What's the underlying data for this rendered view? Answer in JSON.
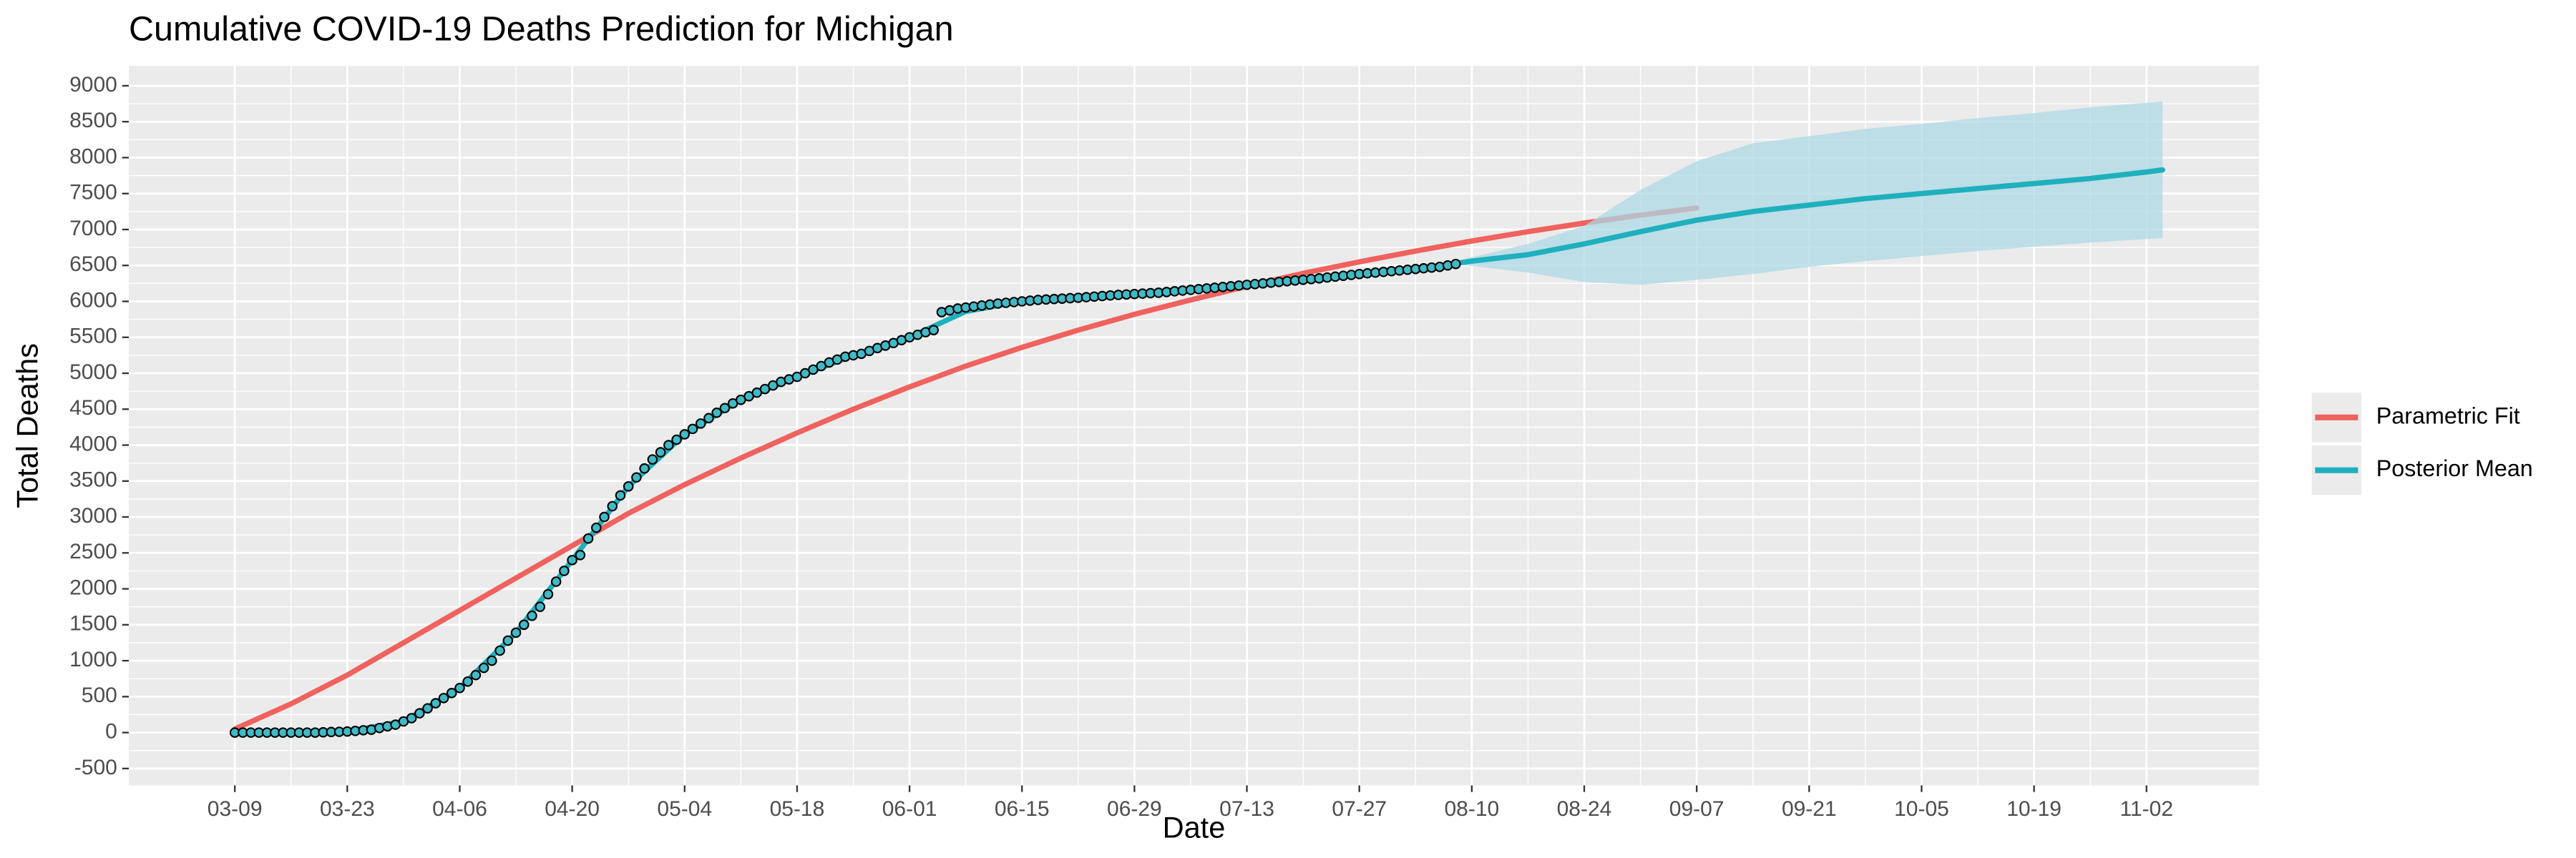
{
  "chart_data": {
    "type": "line",
    "title": "Cumulative COVID-19 Deaths Prediction for Michigan",
    "x_label": "Date",
    "y_label": "Total Deaths",
    "xlim": [
      -13.2,
      252
    ],
    "ylim": [
      -735,
      9275
    ],
    "xticks": [
      {
        "value": 0,
        "label": "03-09"
      },
      {
        "value": 14,
        "label": "03-23"
      },
      {
        "value": 28,
        "label": "04-06"
      },
      {
        "value": 42,
        "label": "04-20"
      },
      {
        "value": 56,
        "label": "05-04"
      },
      {
        "value": 70,
        "label": "05-18"
      },
      {
        "value": 84,
        "label": "06-01"
      },
      {
        "value": 98,
        "label": "06-15"
      },
      {
        "value": 112,
        "label": "06-29"
      },
      {
        "value": 126,
        "label": "07-13"
      },
      {
        "value": 140,
        "label": "07-27"
      },
      {
        "value": 154,
        "label": "08-10"
      },
      {
        "value": 168,
        "label": "08-24"
      },
      {
        "value": 182,
        "label": "09-07"
      },
      {
        "value": 196,
        "label": "09-21"
      },
      {
        "value": 210,
        "label": "10-05"
      },
      {
        "value": 224,
        "label": "10-19"
      },
      {
        "value": 238,
        "label": "11-02"
      }
    ],
    "yticks": [
      -500,
      0,
      500,
      1000,
      1500,
      2000,
      2500,
      3000,
      3500,
      4000,
      4500,
      5000,
      5500,
      6000,
      6500,
      7000,
      7500,
      8000,
      8500,
      9000
    ],
    "grid": true,
    "legend_position": "right",
    "series": [
      {
        "name": "Parametric Fit",
        "color": "#F0625E",
        "x": [
          0,
          7,
          14,
          21,
          28,
          35,
          42,
          49,
          56,
          63,
          70,
          77,
          84,
          91,
          98,
          105,
          112,
          119,
          126,
          133,
          140,
          147,
          154,
          161,
          168,
          175,
          182
        ],
        "values": [
          50,
          400,
          800,
          1250,
          1700,
          2150,
          2600,
          3050,
          3450,
          3820,
          4170,
          4500,
          4810,
          5100,
          5360,
          5600,
          5820,
          6020,
          6210,
          6390,
          6550,
          6700,
          6840,
          6970,
          7090,
          7200,
          7300
        ]
      },
      {
        "name": "Posterior Mean",
        "color": "#1FB0BD",
        "x": [
          0,
          7,
          14,
          21,
          28,
          35,
          42,
          49,
          56,
          63,
          70,
          77,
          84,
          91,
          98,
          105,
          112,
          119,
          126,
          133,
          140,
          147,
          154,
          161,
          168,
          175,
          182,
          189,
          196,
          203,
          210,
          217,
          224,
          231,
          238,
          240
        ],
        "values": [
          0,
          0,
          15,
          155,
          620,
          1390,
          2400,
          3425,
          4150,
          4630,
          4950,
          5250,
          5500,
          5860,
          6000,
          6050,
          6100,
          6160,
          6230,
          6300,
          6380,
          6450,
          6560,
          6650,
          6800,
          6970,
          7130,
          7250,
          7340,
          7430,
          7500,
          7570,
          7640,
          7710,
          7800,
          7830
        ]
      }
    ],
    "band": {
      "color": "#ADD8E6",
      "x": [
        152,
        161,
        168,
        175,
        182,
        189,
        196,
        203,
        210,
        217,
        224,
        231,
        240
      ],
      "lower": [
        6520,
        6400,
        6270,
        6230,
        6300,
        6380,
        6480,
        6560,
        6630,
        6700,
        6760,
        6820,
        6880
      ],
      "upper": [
        6560,
        6800,
        7050,
        7550,
        7950,
        8200,
        8300,
        8400,
        8470,
        8550,
        8620,
        8700,
        8780
      ]
    },
    "points": {
      "color": "#3FBAC6",
      "x": [
        0,
        1,
        2,
        3,
        4,
        5,
        6,
        7,
        8,
        9,
        10,
        11,
        12,
        13,
        14,
        15,
        16,
        17,
        18,
        19,
        20,
        21,
        22,
        23,
        24,
        25,
        26,
        27,
        28,
        29,
        30,
        31,
        32,
        33,
        34,
        35,
        36,
        37,
        38,
        39,
        40,
        41,
        42,
        43,
        44,
        45,
        46,
        47,
        48,
        49,
        50,
        51,
        52,
        53,
        54,
        55,
        56,
        57,
        58,
        59,
        60,
        61,
        62,
        63,
        64,
        65,
        66,
        67,
        68,
        69,
        70,
        71,
        72,
        73,
        74,
        75,
        76,
        77,
        78,
        79,
        80,
        81,
        82,
        83,
        84,
        85,
        86,
        87,
        88,
        89,
        90,
        91,
        92,
        93,
        94,
        95,
        96,
        97,
        98,
        99,
        100,
        101,
        102,
        103,
        104,
        105,
        106,
        107,
        108,
        109,
        110,
        111,
        112,
        113,
        114,
        115,
        116,
        117,
        118,
        119,
        120,
        121,
        122,
        123,
        124,
        125,
        126,
        127,
        128,
        129,
        130,
        131,
        132,
        133,
        134,
        135,
        136,
        137,
        138,
        139,
        140,
        141,
        142,
        143,
        144,
        145,
        146,
        147,
        148,
        149,
        150,
        151,
        152
      ],
      "values": [
        0,
        0,
        0,
        0,
        0,
        0,
        0,
        0,
        0,
        0,
        0,
        4,
        8,
        11,
        15,
        23,
        32,
        40,
        63,
        87,
        110,
        155,
        200,
        268,
        337,
        408,
        480,
        550,
        620,
        710,
        800,
        900,
        1000,
        1140,
        1280,
        1390,
        1500,
        1625,
        1750,
        1925,
        2100,
        2250,
        2400,
        2470,
        2700,
        2850,
        3000,
        3150,
        3300,
        3425,
        3550,
        3675,
        3800,
        3900,
        4000,
        4075,
        4150,
        4225,
        4300,
        4375,
        4450,
        4515,
        4580,
        4630,
        4680,
        4730,
        4780,
        4830,
        4880,
        4915,
        4950,
        5000,
        5050,
        5100,
        5150,
        5190,
        5230,
        5250,
        5270,
        5310,
        5350,
        5385,
        5420,
        5460,
        5500,
        5535,
        5570,
        5600,
        5850,
        5875,
        5900,
        5914,
        5928,
        5942,
        5956,
        5970,
        5980,
        5990,
        6000,
        6010,
        6020,
        6026,
        6032,
        6038,
        6044,
        6050,
        6058,
        6066,
        6074,
        6082,
        6090,
        6096,
        6102,
        6108,
        6114,
        6120,
        6130,
        6140,
        6150,
        6160,
        6170,
        6180,
        6190,
        6200,
        6210,
        6220,
        6230,
        6240,
        6250,
        6260,
        6270,
        6280,
        6290,
        6300,
        6310,
        6320,
        6332,
        6344,
        6356,
        6368,
        6380,
        6390,
        6400,
        6410,
        6420,
        6430,
        6440,
        6450,
        6460,
        6470,
        6480,
        6500,
        6520
      ]
    }
  }
}
